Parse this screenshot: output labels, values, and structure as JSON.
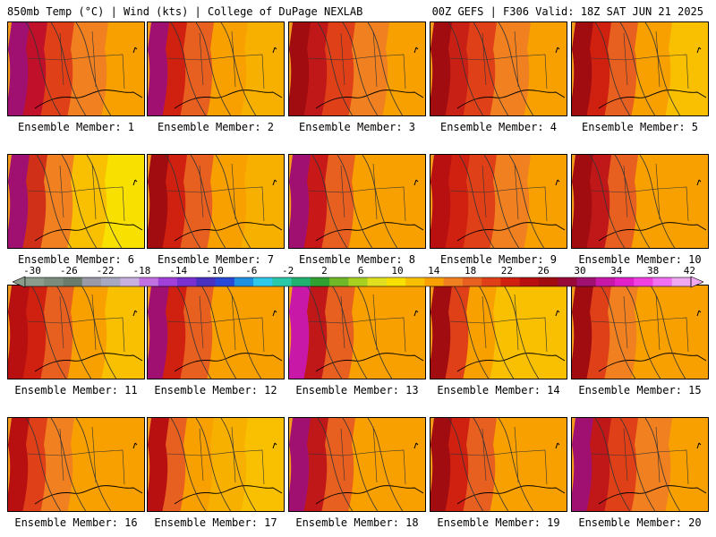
{
  "header": {
    "left": "850mb Temp (°C) | Wind (kts) | College of DuPage NEXLAB",
    "right": "00Z GEFS | F306 Valid: 18Z SAT JUN 21 2025"
  },
  "panels": [
    {
      "caption": "Ensemble Member: 1"
    },
    {
      "caption": "Ensemble Member: 2"
    },
    {
      "caption": "Ensemble Member: 3"
    },
    {
      "caption": "Ensemble Member: 4"
    },
    {
      "caption": "Ensemble Member: 5"
    },
    {
      "caption": "Ensemble Member: 6"
    },
    {
      "caption": "Ensemble Member: 7"
    },
    {
      "caption": "Ensemble Member: 8"
    },
    {
      "caption": "Ensemble Member: 9"
    },
    {
      "caption": "Ensemble Member: 10"
    },
    {
      "caption": "Ensemble Member: 11"
    },
    {
      "caption": "Ensemble Member: 12"
    },
    {
      "caption": "Ensemble Member: 13"
    },
    {
      "caption": "Ensemble Member: 14"
    },
    {
      "caption": "Ensemble Member: 15"
    },
    {
      "caption": "Ensemble Member: 16"
    },
    {
      "caption": "Ensemble Member: 17"
    },
    {
      "caption": "Ensemble Member: 18"
    },
    {
      "caption": "Ensemble Member: 19"
    },
    {
      "caption": "Ensemble Member: 20"
    }
  ],
  "colorbar": {
    "tick_labels": [
      "-30",
      "-26",
      "-22",
      "-18",
      "-14",
      "-10",
      "-6",
      "-2",
      "2",
      "6",
      "10",
      "14",
      "18",
      "22",
      "26",
      "30",
      "34",
      "38",
      "42"
    ],
    "colors": [
      "#8c9c8c",
      "#7c8c7c",
      "#6c7c6c",
      "#9a9aa8",
      "#a8a8c0",
      "#c8b0e0",
      "#c070e0",
      "#a040d8",
      "#7a30d0",
      "#4830c0",
      "#2848d8",
      "#2090e0",
      "#30c8e8",
      "#28c8a8",
      "#20b070",
      "#30a030",
      "#70b828",
      "#a8d020",
      "#e0e020",
      "#f8e000",
      "#f8c000",
      "#f8a000",
      "#f08020",
      "#e86020",
      "#e04018",
      "#d02010",
      "#b81010",
      "#a00c10",
      "#980838",
      "#a01070",
      "#c818a8",
      "#e020c8",
      "#f040e0",
      "#f070f0",
      "#f0a8f0"
    ]
  }
}
